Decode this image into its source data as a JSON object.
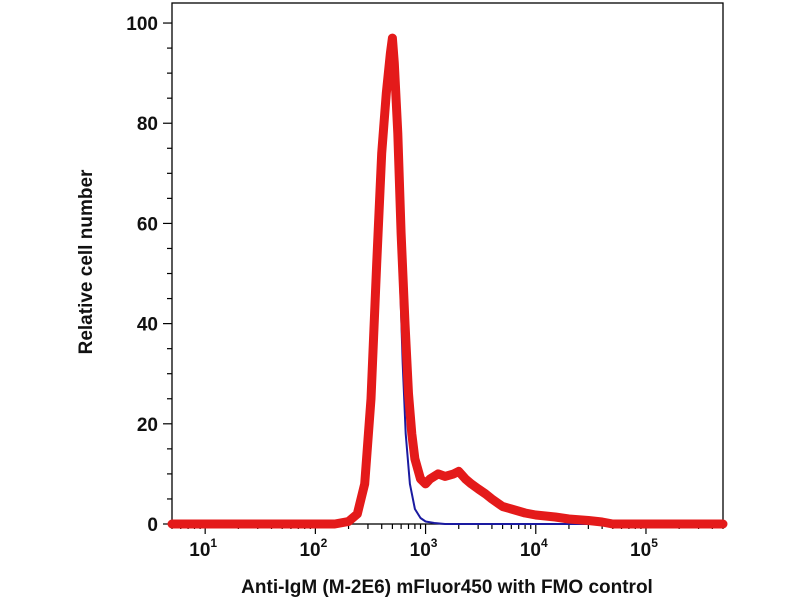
{
  "chart_data": {
    "type": "line",
    "title": "",
    "xlabel": "Anti-IgM (M-2E6) mFluor450 with FMO control",
    "ylabel": "Relative cell number",
    "x_scale": "log",
    "xlim": [
      5,
      500000
    ],
    "ylim": [
      0,
      104
    ],
    "grid": false,
    "y_ticks": [
      "0",
      "20",
      "40",
      "60",
      "80",
      "100"
    ],
    "x_ticks": [
      {
        "base": "10",
        "exp": "1"
      },
      {
        "base": "10",
        "exp": "2"
      },
      {
        "base": "10",
        "exp": "3"
      },
      {
        "base": "10",
        "exp": "4"
      },
      {
        "base": "10",
        "exp": "5"
      }
    ],
    "series": [
      {
        "color": "#1a1aa0",
        "x": [
          5,
          150,
          220,
          260,
          300,
          340,
          380,
          420,
          460,
          490,
          510,
          540,
          580,
          620,
          660,
          720,
          800,
          900,
          1000,
          1200,
          1500,
          2000,
          500000
        ],
        "y": [
          0,
          0,
          0.5,
          3,
          12,
          32,
          58,
          78,
          88,
          92,
          89,
          75,
          52,
          32,
          18,
          8,
          3,
          1.2,
          0.5,
          0.2,
          0,
          0,
          0
        ]
      },
      {
        "color": "#e41a1a",
        "x": [
          5,
          150,
          200,
          240,
          280,
          320,
          360,
          400,
          440,
          480,
          500,
          520,
          560,
          600,
          650,
          700,
          750,
          800,
          900,
          1000,
          1100,
          1300,
          1500,
          1800,
          2000,
          2300,
          2600,
          3000,
          3500,
          4000,
          5000,
          6000,
          8000,
          10000,
          15000,
          20000,
          30000,
          40000,
          50000,
          500000
        ],
        "y": [
          0,
          0,
          0.5,
          2,
          8,
          25,
          52,
          74,
          86,
          94,
          97,
          92,
          78,
          58,
          40,
          26,
          18,
          13,
          9,
          8,
          9,
          10,
          9.5,
          10,
          10.5,
          9,
          8,
          7,
          6,
          5,
          3.5,
          3,
          2.2,
          1.8,
          1.4,
          1,
          0.7,
          0.4,
          0,
          0
        ]
      }
    ]
  }
}
